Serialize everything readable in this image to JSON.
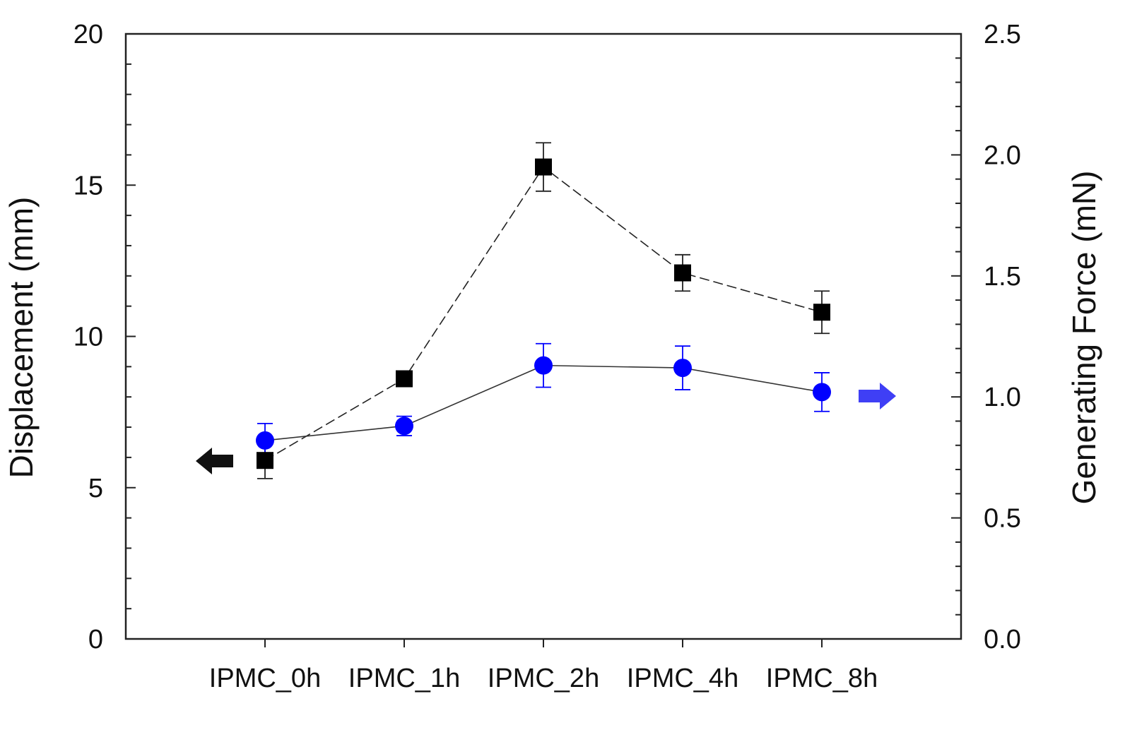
{
  "chart_data": {
    "type": "line",
    "categories": [
      "IPMC_0h",
      "IPMC_1h",
      "IPMC_2h",
      "IPMC_4h",
      "IPMC_8h"
    ],
    "y_left": {
      "label": "Displacement (mm)",
      "range": [
        0,
        20
      ],
      "ticks": [
        "0",
        "5",
        "10",
        "15",
        "20"
      ]
    },
    "y_right": {
      "label": "Generating Force (mN)",
      "range": [
        0,
        2.5
      ],
      "ticks": [
        "0.0",
        "0.5",
        "1.0",
        "1.5",
        "2.0",
        "2.5"
      ]
    },
    "series": [
      {
        "axis": "left",
        "marker": "square",
        "line_style": "dashed",
        "color": "#000000",
        "values": [
          5.9,
          8.6,
          15.6,
          12.1,
          10.8
        ],
        "errors": [
          0.6,
          0.15,
          0.8,
          0.6,
          0.7
        ]
      },
      {
        "axis": "right",
        "marker": "circle",
        "line_style": "solid",
        "color": "#0000ff",
        "values": [
          0.82,
          0.88,
          1.13,
          1.12,
          1.02
        ],
        "errors": [
          0.07,
          0.04,
          0.09,
          0.09,
          0.08
        ]
      }
    ],
    "annotations": [
      {
        "shape": "arrow-left",
        "color": "#111111",
        "points_to": "left axis"
      },
      {
        "shape": "arrow-right",
        "color": "#3f3ff5",
        "points_to": "right axis"
      }
    ],
    "grid": false,
    "legend": "none"
  }
}
